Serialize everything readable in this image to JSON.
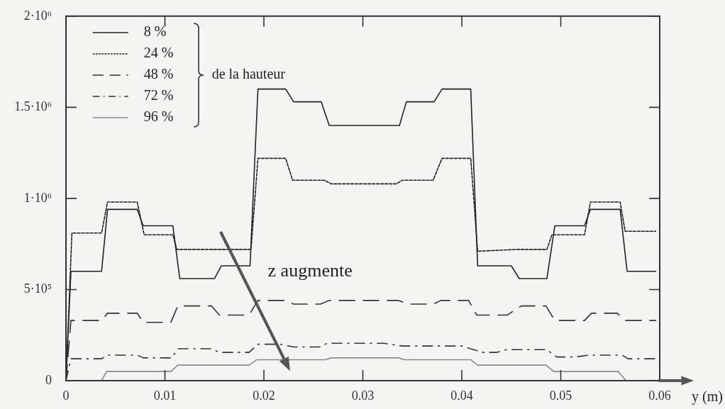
{
  "chart_data": {
    "type": "line",
    "xlabel": "y (m)",
    "legend_title": "de la hauteur",
    "legend": "top left",
    "marker": "none",
    "annotations": [
      "z augmente"
    ],
    "xlim": [
      0,
      0.06
    ],
    "xticks": [
      0,
      0.01,
      0.02,
      0.03,
      0.04,
      0.05,
      0.06
    ],
    "ylim": [
      0,
      2000000
    ],
    "yticks": [
      0,
      {
        "value": 500000,
        "label": "5·10⁵"
      },
      {
        "value": 1000000,
        "label": "1·10⁶"
      },
      {
        "value": 1500000,
        "label": "1.5·10⁶"
      },
      {
        "value": 2000000,
        "label": "2·10⁶"
      }
    ],
    "series": [
      {
        "name": "8 %",
        "color": "#222222",
        "line_style": "solid",
        "x": [
          0,
          0.0005,
          0.0036,
          0.0042,
          0.0072,
          0.0078,
          0.0108,
          0.0115,
          0.015,
          0.0157,
          0.0186,
          0.0194,
          0.0222,
          0.023,
          0.0258,
          0.0266,
          0.0337,
          0.0344,
          0.0372,
          0.038,
          0.0409,
          0.0416,
          0.045,
          0.0458,
          0.0486,
          0.0494,
          0.0524,
          0.053,
          0.056,
          0.0567,
          0.0596
        ],
        "values": [
          0,
          600000,
          600000,
          940000,
          940000,
          850000,
          850000,
          560000,
          560000,
          630000,
          630000,
          1600000,
          1600000,
          1530000,
          1530000,
          1400000,
          1400000,
          1530000,
          1530000,
          1600000,
          1600000,
          630000,
          630000,
          560000,
          560000,
          850000,
          850000,
          940000,
          940000,
          600000,
          600000
        ]
      },
      {
        "name": "24 %",
        "color": "#222222",
        "line_style": "dotted",
        "x": [
          0,
          0.0006,
          0.0036,
          0.0042,
          0.0072,
          0.0079,
          0.0108,
          0.0112,
          0.0187,
          0.0194,
          0.0222,
          0.0229,
          0.0261,
          0.0268,
          0.0334,
          0.034,
          0.0371,
          0.038,
          0.0409,
          0.0416,
          0.0455,
          0.0486,
          0.0491,
          0.0524,
          0.053,
          0.056,
          0.0565,
          0.0596
        ],
        "values": [
          0,
          810000,
          810000,
          980000,
          980000,
          800000,
          800000,
          720000,
          720000,
          1220000,
          1220000,
          1100000,
          1100000,
          1080000,
          1080000,
          1100000,
          1100000,
          1220000,
          1220000,
          710000,
          720000,
          720000,
          800000,
          800000,
          980000,
          980000,
          820000,
          820000
        ]
      },
      {
        "name": "48 %",
        "color": "#333333",
        "line_style": "dashed",
        "x": [
          0,
          0.0005,
          0.0036,
          0.0042,
          0.0072,
          0.0078,
          0.0106,
          0.0113,
          0.0147,
          0.0155,
          0.0185,
          0.0194,
          0.0222,
          0.023,
          0.0257,
          0.0266,
          0.0336,
          0.0346,
          0.0371,
          0.0379,
          0.0407,
          0.0415,
          0.0446,
          0.046,
          0.0485,
          0.0494,
          0.0524,
          0.0531,
          0.0557,
          0.0565,
          0.0596
        ],
        "values": [
          0,
          330000,
          330000,
          370000,
          370000,
          320000,
          320000,
          410000,
          410000,
          360000,
          360000,
          440000,
          440000,
          420000,
          420000,
          440000,
          440000,
          420000,
          420000,
          440000,
          440000,
          360000,
          360000,
          410000,
          410000,
          330000,
          330000,
          370000,
          370000,
          330000,
          330000
        ]
      },
      {
        "name": "72 %",
        "color": "#333333",
        "line_style": "dashdot",
        "x": [
          0,
          0.0005,
          0.0036,
          0.0042,
          0.0072,
          0.0078,
          0.0107,
          0.0113,
          0.0147,
          0.0155,
          0.0185,
          0.0194,
          0.0216,
          0.023,
          0.0256,
          0.0264,
          0.0321,
          0.034,
          0.04,
          0.0421,
          0.0435,
          0.0445,
          0.0486,
          0.0496,
          0.0515,
          0.0528,
          0.0562,
          0.0568,
          0.0596
        ],
        "values": [
          0,
          120000,
          120000,
          140000,
          140000,
          125000,
          125000,
          175000,
          175000,
          155000,
          155000,
          200000,
          200000,
          185000,
          185000,
          205000,
          205000,
          190000,
          190000,
          155000,
          155000,
          170000,
          170000,
          130000,
          130000,
          140000,
          140000,
          120000,
          120000
        ]
      },
      {
        "name": "96 %",
        "color": "#8a8a8a",
        "line_style": "solid",
        "x": [
          0,
          0.0036,
          0.0041,
          0.0106,
          0.0113,
          0.0185,
          0.0193,
          0.0262,
          0.0268,
          0.0336,
          0.0342,
          0.0409,
          0.0416,
          0.0485,
          0.0493,
          0.0558,
          0.0566,
          0.0596
        ],
        "values": [
          0,
          0,
          50000,
          50000,
          85000,
          85000,
          115000,
          115000,
          125000,
          125000,
          115000,
          115000,
          85000,
          85000,
          50000,
          50000,
          0,
          0
        ]
      }
    ]
  }
}
